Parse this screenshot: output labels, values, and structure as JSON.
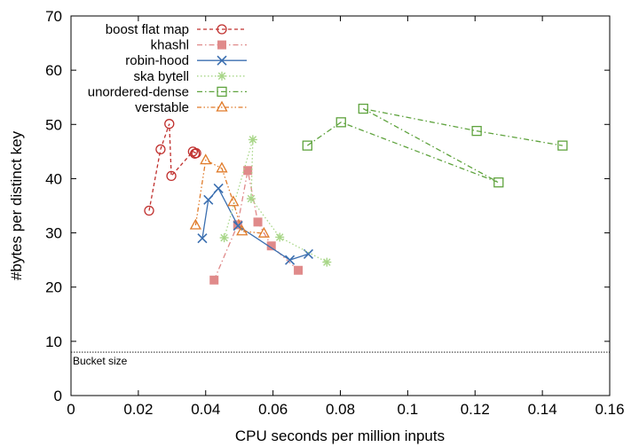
{
  "chart_data": {
    "type": "scatter",
    "title": "",
    "xlabel": "CPU seconds per million inputs",
    "ylabel": "#bytes per distinct key",
    "xlim": [
      0,
      0.16
    ],
    "ylim": [
      0,
      70
    ],
    "xticks": [
      0,
      0.02,
      0.04,
      0.06,
      0.08,
      0.1,
      0.12,
      0.14,
      0.16
    ],
    "xtick_labels": [
      "0",
      "0.02",
      "0.04",
      "0.06",
      "0.08",
      "0.1",
      "0.12",
      "0.14",
      "0.16"
    ],
    "yticks": [
      0,
      10,
      20,
      30,
      40,
      50,
      60,
      70
    ],
    "ytick_labels": [
      "0",
      "10",
      "20",
      "30",
      "40",
      "50",
      "60",
      "70"
    ],
    "grid": false,
    "legend_position": "top-left",
    "series": [
      {
        "name": "boost flat map",
        "color": "#c0302e",
        "marker": "circle-open",
        "line": "dashed",
        "points": [
          [
            0.0232,
            34.1
          ],
          [
            0.0266,
            45.4
          ],
          [
            0.0292,
            50.1
          ],
          [
            0.0298,
            40.5
          ],
          [
            0.0362,
            45.0
          ],
          [
            0.0372,
            44.7
          ],
          [
            0.0368,
            44.6
          ]
        ]
      },
      {
        "name": "khashl",
        "color": "#e08a8a",
        "marker": "square-filled",
        "line": "dashdot",
        "points": [
          [
            0.0425,
            21.3
          ],
          [
            0.0495,
            31.5
          ],
          [
            0.0525,
            41.5
          ],
          [
            0.0555,
            32.0
          ],
          [
            0.0595,
            27.6
          ],
          [
            0.0675,
            23.1
          ]
        ]
      },
      {
        "name": "robin-hood",
        "color": "#3b6fb0",
        "marker": "x",
        "line": "solid",
        "points": [
          [
            0.039,
            29.0
          ],
          [
            0.0408,
            36.1
          ],
          [
            0.0438,
            38.2
          ],
          [
            0.0496,
            31.3
          ],
          [
            0.065,
            25.0
          ],
          [
            0.0705,
            26.1
          ]
        ]
      },
      {
        "name": "ska bytell",
        "color": "#a8d688",
        "marker": "asterisk",
        "line": "dotted",
        "points": [
          [
            0.0455,
            29.1
          ],
          [
            0.054,
            47.2
          ],
          [
            0.0535,
            36.3
          ],
          [
            0.062,
            29.2
          ],
          [
            0.076,
            24.6
          ]
        ]
      },
      {
        "name": "unordered-dense",
        "color": "#5fa33e",
        "marker": "square-open",
        "line": "dashdot",
        "points": [
          [
            0.0702,
            46.1
          ],
          [
            0.0802,
            50.4
          ],
          [
            0.127,
            39.3
          ],
          [
            0.0868,
            52.9
          ],
          [
            0.1205,
            48.8
          ],
          [
            0.146,
            46.1
          ]
        ]
      },
      {
        "name": "verstable",
        "color": "#e07b2a",
        "marker": "triangle-open",
        "line": "dashdotdot",
        "points": [
          [
            0.037,
            31.4
          ],
          [
            0.04,
            43.4
          ],
          [
            0.0448,
            41.9
          ],
          [
            0.0482,
            35.7
          ],
          [
            0.0508,
            30.3
          ],
          [
            0.0573,
            29.9
          ]
        ]
      }
    ],
    "annotations": [
      {
        "type": "hline",
        "y": 8,
        "label": "Bucket size"
      }
    ]
  }
}
